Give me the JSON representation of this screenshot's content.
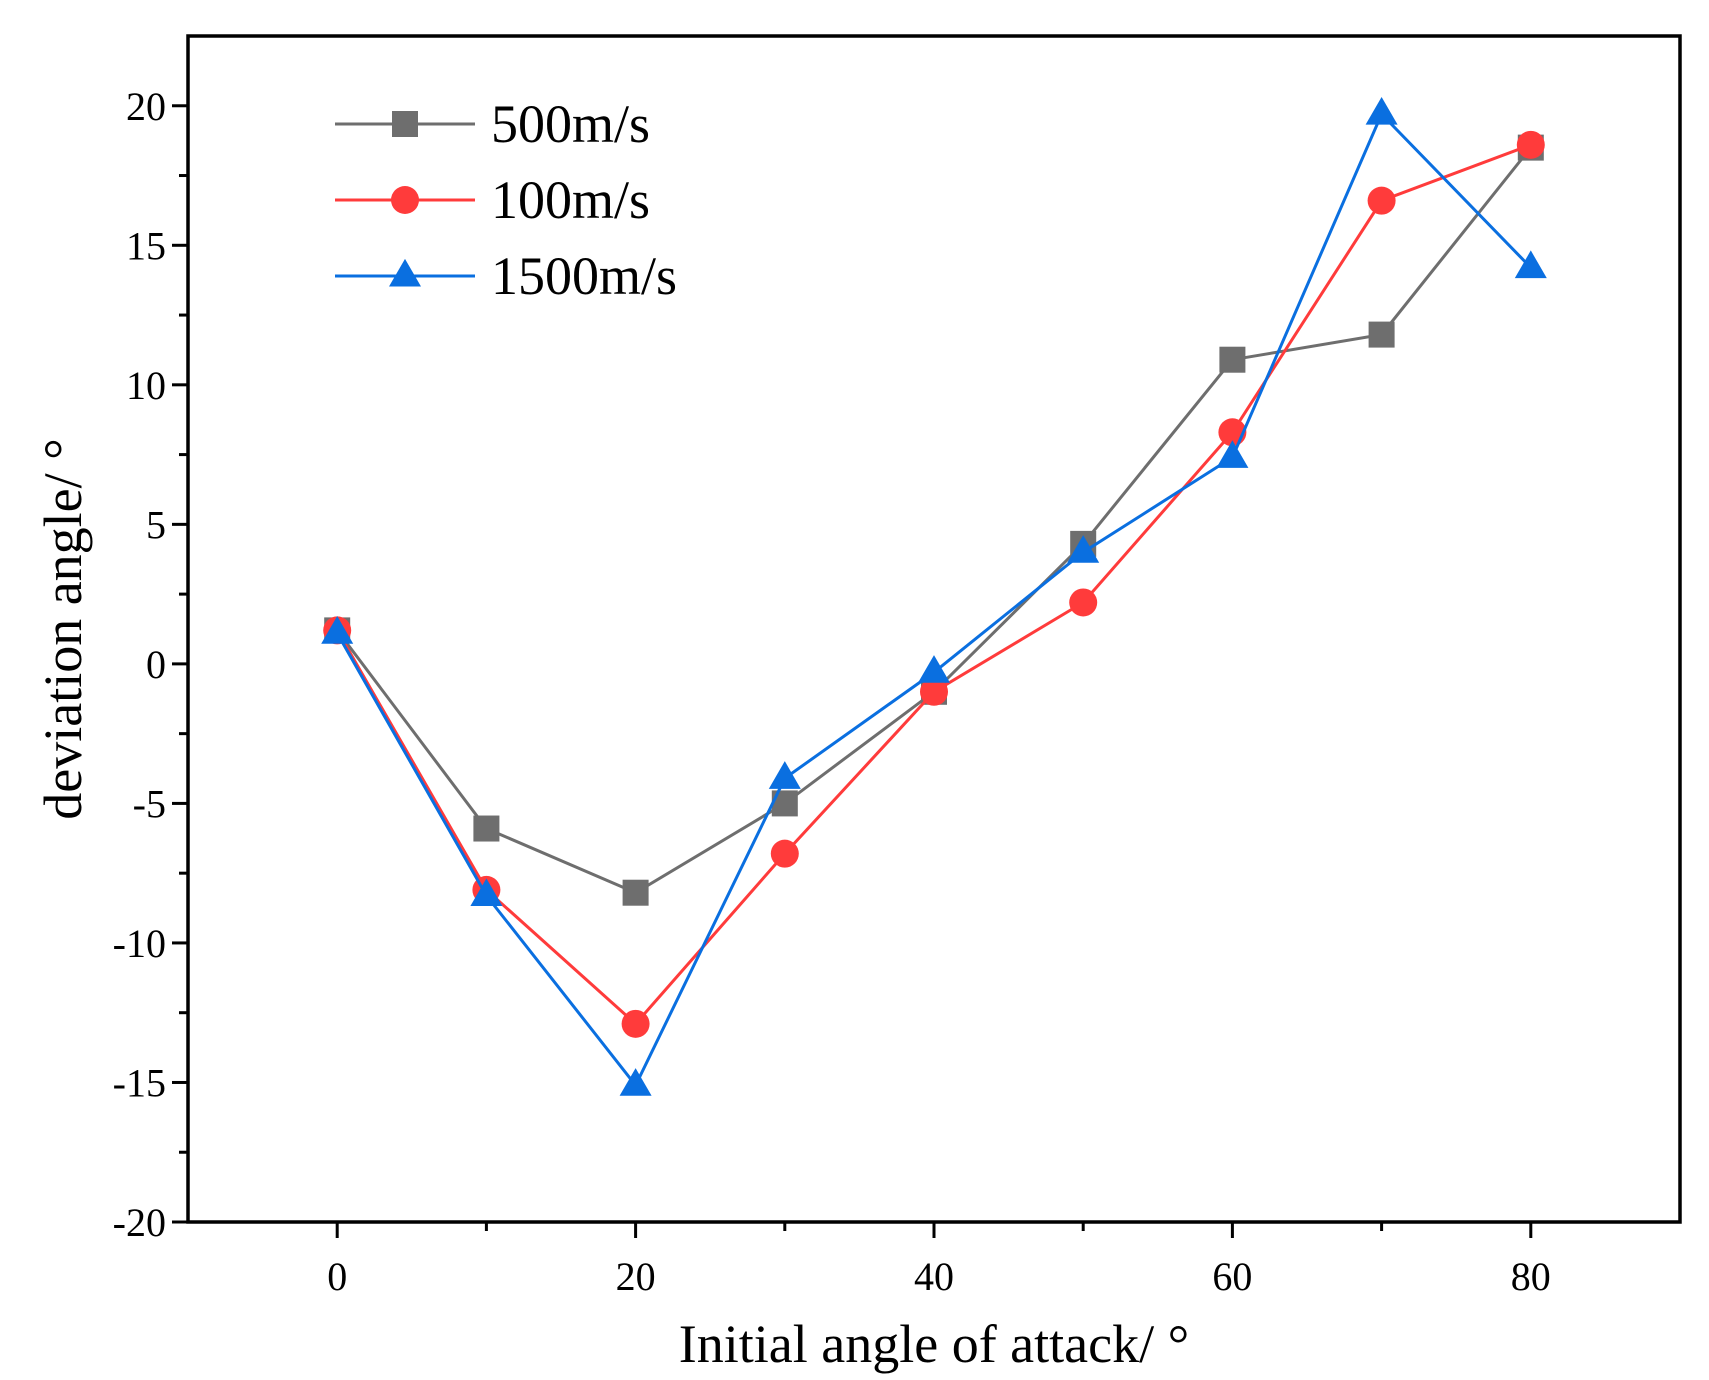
{
  "chart_data": {
    "type": "line",
    "title": "",
    "xlabel": "Initial angle of attack/ °",
    "ylabel": "deviation angle/ °",
    "xlim": [
      -10,
      90
    ],
    "ylim": [
      -20,
      22.5
    ],
    "x_ticks": [
      0,
      20,
      40,
      60,
      80
    ],
    "x_minor_ticks": [
      10,
      30,
      50,
      70
    ],
    "x_tick_labels": [
      "0",
      "20",
      "40",
      "60",
      "80"
    ],
    "y_ticks": [
      -20,
      -15,
      -10,
      -5,
      0,
      5,
      10,
      15,
      20
    ],
    "y_minor_ticks": [
      -17.5,
      -12.5,
      -7.5,
      -2.5,
      2.5,
      7.5,
      12.5,
      17.5
    ],
    "y_tick_labels": [
      "-20",
      "-15",
      "-10",
      "-5",
      "0",
      "5",
      "10",
      "15",
      "20"
    ],
    "grid": false,
    "legend_position": "top-left",
    "x": [
      0,
      10,
      20,
      30,
      40,
      50,
      60,
      70,
      80
    ],
    "series": [
      {
        "name": "500m/s",
        "color": "#6e6e6e",
        "marker": "square",
        "values": [
          1.2,
          -5.9,
          -8.2,
          -5.0,
          -1.0,
          4.3,
          10.9,
          11.8,
          18.5
        ]
      },
      {
        "name": "100m/s",
        "color": "#ff3b3b",
        "marker": "circle",
        "values": [
          1.2,
          -8.1,
          -12.9,
          -6.8,
          -1.0,
          2.2,
          8.3,
          16.6,
          18.6
        ]
      },
      {
        "name": "1500m/s",
        "color": "#0a6fe0",
        "marker": "triangle",
        "values": [
          1.1,
          -8.3,
          -15.1,
          -4.1,
          -0.3,
          4.0,
          7.4,
          19.7,
          14.2
        ]
      }
    ]
  }
}
